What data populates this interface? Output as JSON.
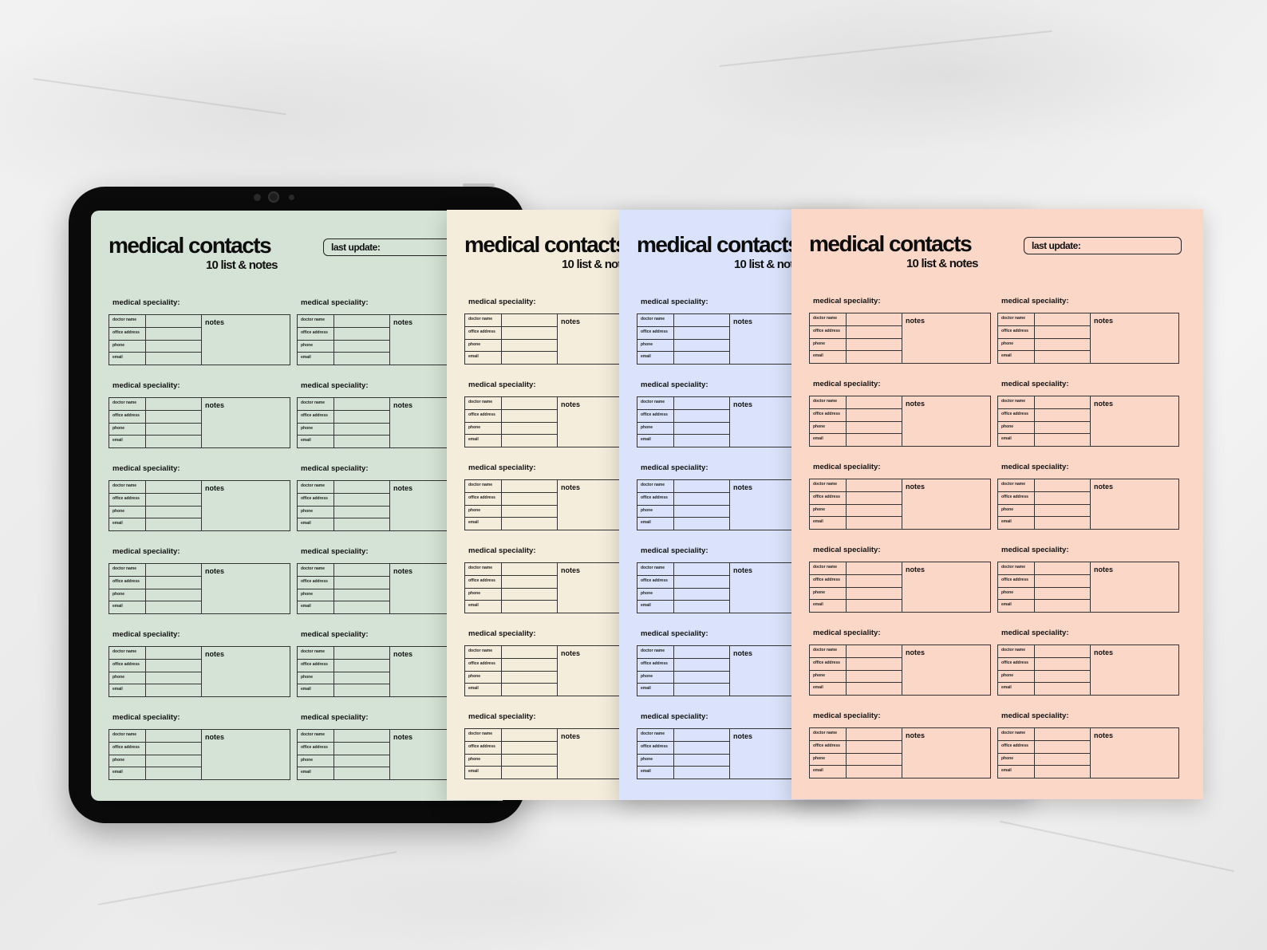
{
  "page": {
    "title": "medical contacts",
    "subtitle": "10 list & notes",
    "last_update_label": "last update:",
    "speciality_label": "medical speciality:",
    "notes_label": "notes",
    "field_labels": [
      "doctor name",
      "office address",
      "phone",
      "email"
    ]
  },
  "colors": {
    "green": "#d4e3d6",
    "yellow": "#f5eddc",
    "blue": "#dae3fb",
    "pink": "#fbd7c8",
    "tablet_frame": "#0b0b0b",
    "ink": "#111111"
  }
}
